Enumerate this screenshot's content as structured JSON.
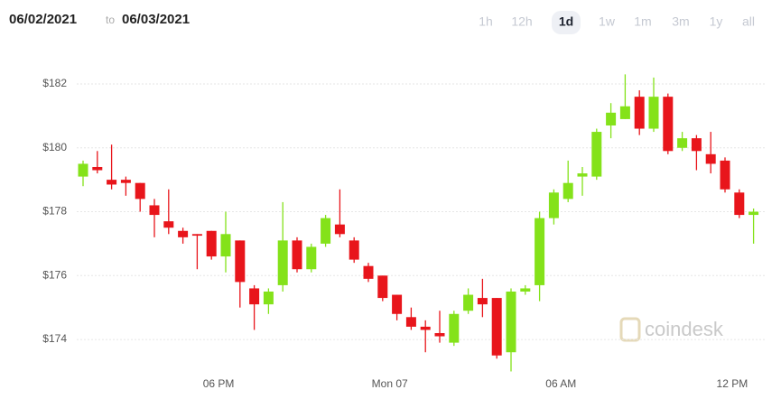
{
  "header": {
    "from": "06/02/2021",
    "to_word": "to",
    "to": "06/03/2021"
  },
  "ranges": {
    "items": [
      "1h",
      "12h",
      "1d",
      "1w",
      "1m",
      "3m",
      "1y",
      "all"
    ],
    "active": "1d"
  },
  "watermark": "coindesk",
  "chart_data": {
    "type": "candlestick",
    "categories": [
      null,
      null,
      null,
      null,
      null,
      null,
      null,
      null,
      null,
      null,
      "06 PM",
      null,
      null,
      null,
      null,
      null,
      null,
      null,
      null,
      null,
      null,
      null,
      "Mon 07",
      null,
      null,
      null,
      null,
      null,
      null,
      null,
      null,
      null,
      null,
      null,
      "06 AM",
      null,
      null,
      null,
      null,
      null,
      null,
      null,
      null,
      null,
      null,
      null,
      "12 PM",
      null
    ],
    "series": [
      {
        "name": "open",
        "values": [
          179.1,
          179.4,
          179.0,
          179.0,
          178.9,
          178.2,
          177.7,
          177.4,
          177.3,
          177.4,
          176.6,
          177.1,
          175.6,
          175.1,
          175.7,
          177.1,
          176.2,
          177.0,
          177.6,
          177.1,
          176.3,
          176.0,
          175.4,
          174.7,
          174.4,
          174.2,
          173.9,
          174.9,
          175.3,
          175.3,
          173.6,
          175.5,
          175.7,
          177.8,
          178.4,
          179.1,
          179.1,
          180.7,
          180.9,
          181.6,
          180.6,
          181.6,
          180.0,
          180.3,
          179.8,
          179.6,
          178.6,
          177.9
        ]
      },
      {
        "name": "high",
        "values": [
          179.6,
          179.9,
          180.1,
          179.1,
          178.9,
          178.4,
          178.7,
          177.5,
          177.3,
          177.4,
          178.0,
          177.1,
          175.7,
          175.6,
          178.3,
          177.2,
          177.0,
          177.9,
          178.7,
          177.2,
          176.4,
          176.0,
          175.4,
          175.0,
          174.6,
          174.9,
          174.9,
          175.6,
          175.9,
          175.3,
          175.6,
          175.7,
          178.0,
          178.7,
          179.6,
          179.4,
          180.6,
          181.4,
          182.3,
          181.8,
          182.2,
          181.7,
          180.5,
          180.4,
          180.5,
          179.7,
          178.7,
          178.1
        ]
      },
      {
        "name": "low",
        "values": [
          178.8,
          179.2,
          178.7,
          178.5,
          178.0,
          177.2,
          177.3,
          177.0,
          176.2,
          176.5,
          176.1,
          175.0,
          174.3,
          174.8,
          175.5,
          176.1,
          176.1,
          176.9,
          177.2,
          176.4,
          175.8,
          175.2,
          174.6,
          174.3,
          173.6,
          173.9,
          173.8,
          174.8,
          174.7,
          173.4,
          173.0,
          175.4,
          175.2,
          177.6,
          178.3,
          178.5,
          179.0,
          180.3,
          180.9,
          180.4,
          180.5,
          179.8,
          179.9,
          179.3,
          179.2,
          178.6,
          177.8,
          177.0
        ]
      },
      {
        "name": "close",
        "values": [
          179.5,
          179.3,
          178.85,
          178.9,
          178.4,
          177.9,
          177.5,
          177.2,
          177.25,
          176.6,
          177.3,
          175.8,
          175.1,
          175.5,
          177.1,
          176.2,
          176.9,
          177.8,
          177.3,
          176.5,
          175.9,
          175.3,
          174.8,
          174.4,
          174.3,
          174.1,
          174.8,
          175.4,
          175.1,
          173.5,
          175.5,
          175.6,
          177.8,
          178.6,
          178.9,
          179.2,
          180.5,
          181.1,
          181.3,
          180.6,
          181.6,
          179.9,
          180.3,
          179.9,
          179.5,
          178.7,
          177.9,
          178.0
        ]
      }
    ],
    "up_color": "#84e21a",
    "down_color": "#e8151b",
    "ylim": [
      172.9,
      183
    ],
    "yticks": [
      {
        "value": 174,
        "label": "$174"
      },
      {
        "value": 176,
        "label": "$176"
      },
      {
        "value": 178,
        "label": "$178"
      },
      {
        "value": 180,
        "label": "$180"
      },
      {
        "value": 182,
        "label": "$182"
      }
    ],
    "grid": true
  }
}
